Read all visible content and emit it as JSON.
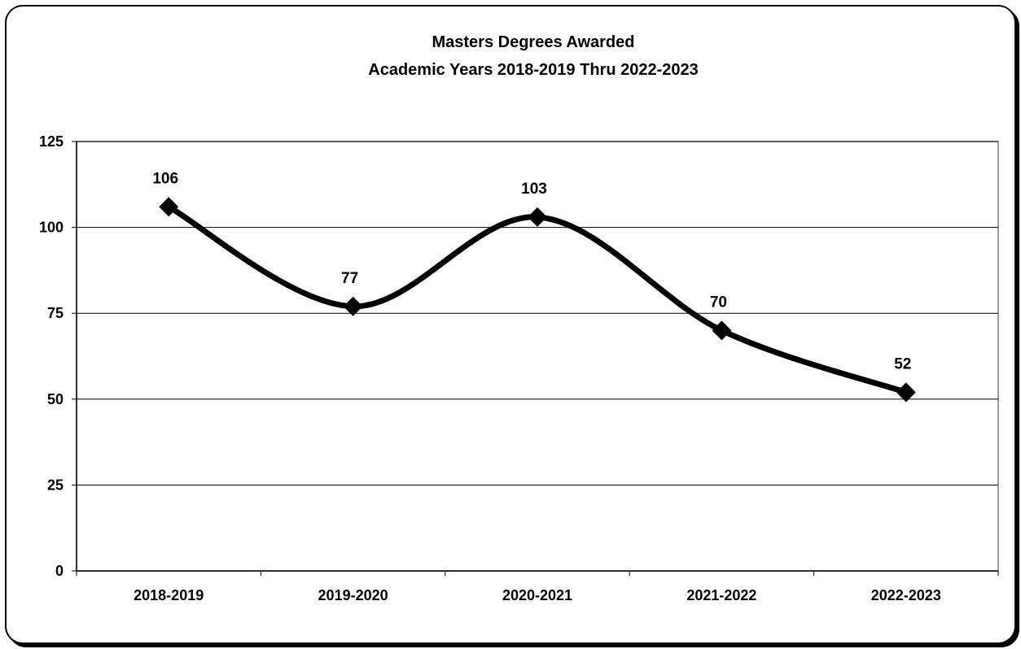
{
  "chart_data": {
    "type": "line",
    "title": "Masters Degrees Awarded",
    "subtitle": "Academic Years 2018-2019 Thru 2022-2023",
    "xlabel": "",
    "ylabel": "",
    "categories": [
      "2018-2019",
      "2019-2020",
      "2020-2021",
      "2021-2022",
      "2022-2023"
    ],
    "values": [
      106,
      77,
      103,
      70,
      52
    ],
    "data_labels": [
      "106",
      "77",
      "103",
      "70",
      "52"
    ],
    "ylim": [
      0,
      125
    ],
    "yticks": [
      0,
      25,
      50,
      75,
      100,
      125
    ],
    "ytick_labels": [
      "0",
      "25",
      "50",
      "75",
      "100",
      "125"
    ],
    "grid": true,
    "smooth": true,
    "marker": "diamond",
    "line_color": "#000000"
  }
}
